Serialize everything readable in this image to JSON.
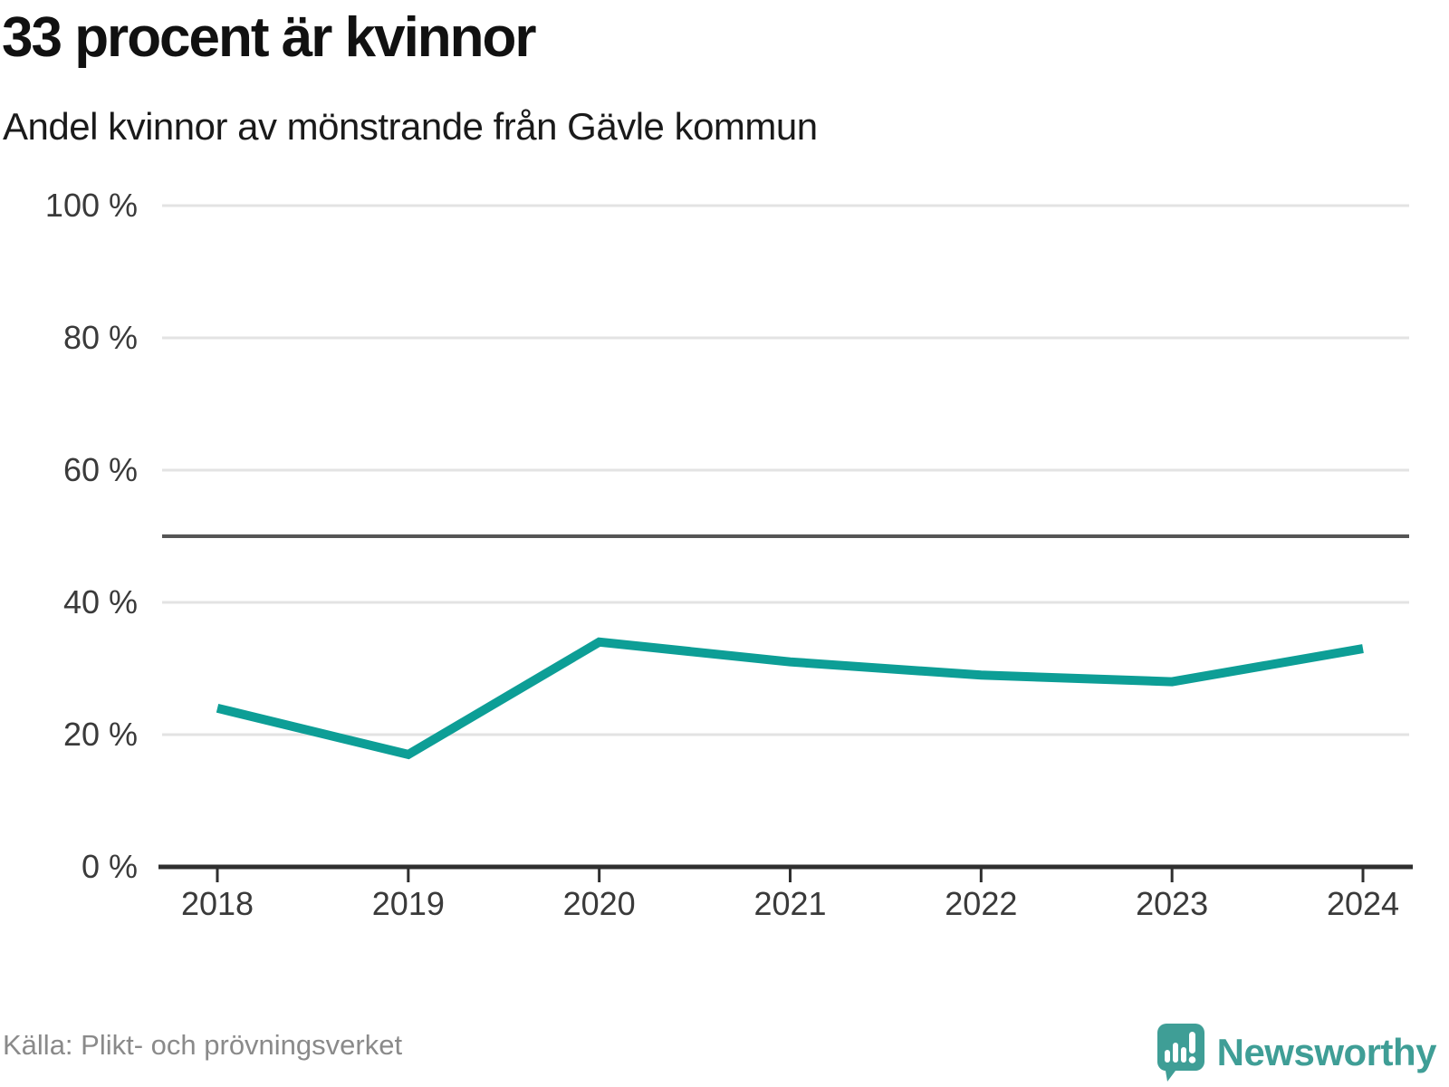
{
  "header": {
    "title": "33 procent är kvinnor",
    "subtitle": "Andel kvinnor av mönstrande från Gävle kommun"
  },
  "chart_data": {
    "type": "line",
    "categories": [
      "2018",
      "2019",
      "2020",
      "2021",
      "2022",
      "2023",
      "2024"
    ],
    "series": [
      {
        "name": "Andel kvinnor av mönstrande",
        "values": [
          24,
          17,
          34,
          31,
          29,
          28,
          33
        ]
      }
    ],
    "unit": "%",
    "title": "33 procent är kvinnor",
    "subtitle": "Andel kvinnor av mönstrande från Gävle kommun",
    "xlabel": "",
    "ylabel": "",
    "ylim": [
      0,
      100
    ],
    "yticks": [
      0,
      20,
      40,
      60,
      80,
      100
    ],
    "ytick_labels": [
      "0 %",
      "20 %",
      "40 %",
      "60 %",
      "80 %",
      "100 %"
    ],
    "reference_line": 50,
    "grid": "horizontal",
    "legend": "none",
    "colors": {
      "line": "#0d9e96",
      "gridline": "#e3e3e3",
      "reference_line": "#555555",
      "axis": "#2f2f2f",
      "tick_label": "#3a3a3a"
    }
  },
  "footer": {
    "source": "Källa: Plikt- och prövningsverket",
    "brand": "Newsworthy",
    "brand_color": "#3f9e96"
  }
}
